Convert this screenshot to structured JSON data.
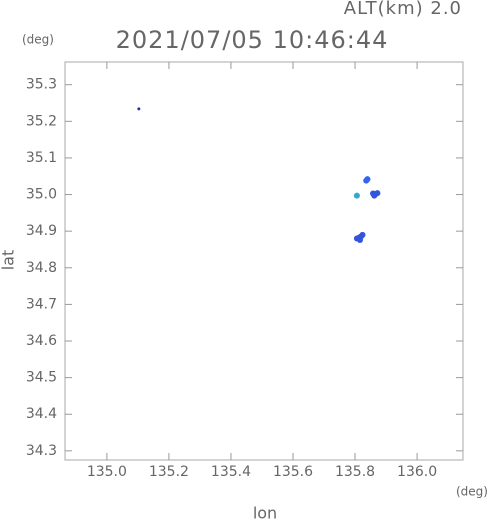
{
  "chart_data": {
    "type": "scatter",
    "title": "2021/07/05 10:46:44",
    "subtitle": "ALT(km) 2.0",
    "y_unit": "(deg)",
    "x_unit": "(deg)",
    "xlabel": "lon",
    "ylabel": "lat",
    "x": [
      135.103,
      135.84,
      135.836,
      135.858,
      135.866,
      135.862,
      135.872,
      135.806,
      135.812,
      135.82,
      135.816,
      135.806,
      135.824
    ],
    "values": [
      35.234,
      35.042,
      35.038,
      35.003,
      35.001,
      34.997,
      35.004,
      34.997,
      34.882,
      34.886,
      34.876,
      34.88,
      34.89
    ],
    "colors": [
      "#2233aa",
      "#3366ee",
      "#3366ee",
      "#3355dd",
      "#3355dd",
      "#3355dd",
      "#3355dd",
      "#33aacc",
      "#3355dd",
      "#3355dd",
      "#3355dd",
      "#3355dd",
      "#3355dd"
    ],
    "xlim": [
      134.865,
      136.148
    ],
    "ylim": [
      34.275,
      35.362
    ],
    "xticks": [
      {
        "value": 135.0,
        "label": "135.0"
      },
      135.2,
      135.4,
      135.6,
      135.8,
      {
        "value": 136.0,
        "label": "136.0"
      }
    ],
    "yticks": [
      34.3,
      34.4,
      34.5,
      34.6,
      34.7,
      34.8,
      34.9,
      {
        "value": 35.0,
        "label": "35.0"
      },
      35.1,
      35.2,
      35.3
    ]
  }
}
